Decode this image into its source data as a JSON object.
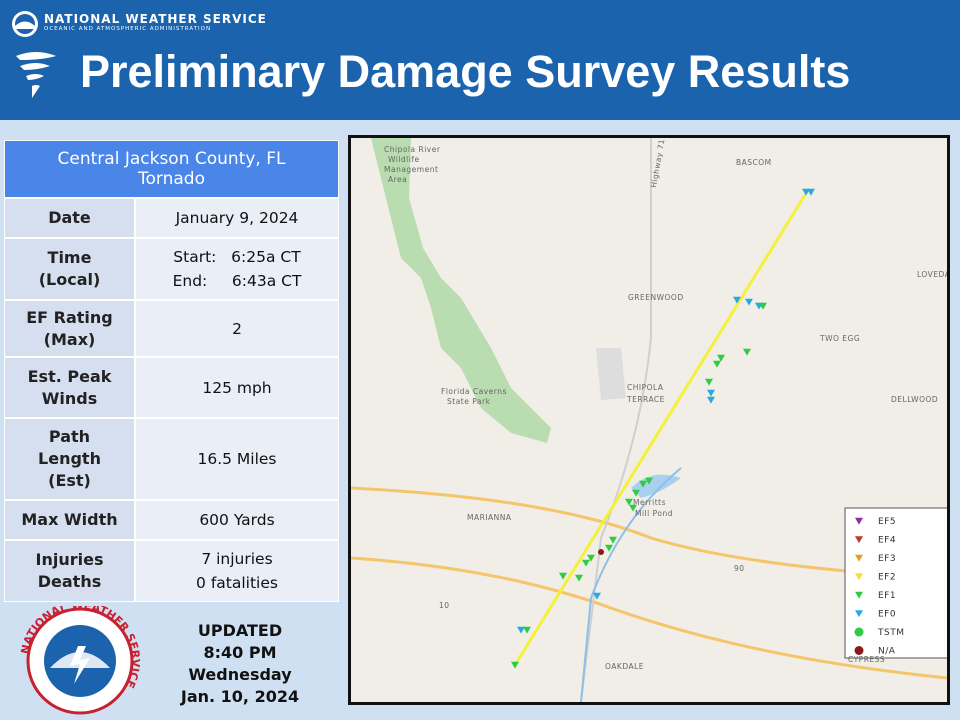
{
  "header": {
    "agency": "NATIONAL WEATHER SERVICE",
    "subagency": "OCEANIC AND ATMOSPHERIC ADMINISTRATION",
    "title": "Preliminary Damage Survey Results"
  },
  "table": {
    "title": [
      "Central Jackson County, FL",
      "Tornado"
    ],
    "rows": [
      {
        "label": [
          "Date"
        ],
        "value": [
          "January 9, 2024"
        ]
      },
      {
        "label": [
          "Time",
          "(Local)"
        ],
        "value": [
          "Start:   6:25a CT",
          "End:     6:43a CT"
        ]
      },
      {
        "label": [
          "EF Rating",
          "(Max)"
        ],
        "value": [
          "2"
        ]
      },
      {
        "label": [
          "Est. Peak",
          "Winds"
        ],
        "value": [
          "125 mph"
        ]
      },
      {
        "label": [
          "Path",
          "Length",
          "(Est)"
        ],
        "value": [
          "16.5 Miles"
        ]
      },
      {
        "label": [
          "Max Width"
        ],
        "value": [
          "600 Yards"
        ]
      },
      {
        "label": [
          "Injuries",
          "Deaths"
        ],
        "value": [
          "7 injuries",
          "0 fatalities"
        ]
      }
    ]
  },
  "seal": "NATIONAL WEATHER SERVICE",
  "updated": [
    "UPDATED",
    "8:40 PM",
    "Wednesday",
    "Jan. 10, 2024"
  ],
  "map": {
    "places": [
      "BASCOM",
      "GREENWOOD",
      "LOVEDALE",
      "TWO EGG",
      "CHIPOLA",
      "TERRACE",
      "DELLWOOD",
      "MARIANNA",
      "OAKDALE",
      "CYPRESS",
      "Merritts",
      "Mill Pond",
      "Highway 71",
      "Florida Caverns",
      "State Park",
      "Chipola River",
      "Wildlife",
      "Management",
      "Area",
      "90",
      "10"
    ],
    "legend": [
      {
        "label": "EF5",
        "color": "#8b2fa8",
        "shape": "triangle"
      },
      {
        "label": "EF4",
        "color": "#c0392b",
        "shape": "triangle"
      },
      {
        "label": "EF3",
        "color": "#e0a020",
        "shape": "triangle"
      },
      {
        "label": "EF2",
        "color": "#f2e02a",
        "shape": "triangle"
      },
      {
        "label": "EF1",
        "color": "#2ecc40",
        "shape": "triangle"
      },
      {
        "label": "EF0",
        "color": "#2aa8e0",
        "shape": "triangle"
      },
      {
        "label": "TSTM",
        "color": "#2ecc40",
        "shape": "circle"
      },
      {
        "label": "N/A",
        "color": "#8b1a1a",
        "shape": "circle"
      }
    ]
  }
}
